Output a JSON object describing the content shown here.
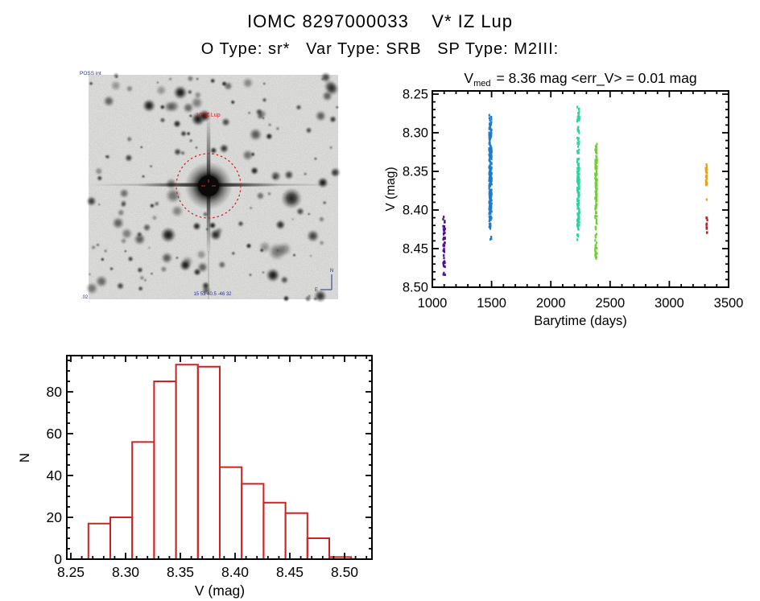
{
  "header": {
    "title": "IOMC 8297000033    V* IZ Lup",
    "subtitle": "O Type: sr*   Var Type: SRB   SP Type: M2III:"
  },
  "finder_chart": {
    "survey_label": "POSS int",
    "target_label": "V* IZ Lup",
    "coords_label": "15 53 40.5  -46 32",
    "scale_label": ".02",
    "compass_north": "N",
    "compass_east": "E"
  },
  "chart_data": [
    {
      "id": "lightcurve",
      "type": "scatter",
      "title_v": "V",
      "title_sub": "med",
      "title_rest": "= 8.36 mag <err_V> = 0.01 mag",
      "v_median_mag": 8.36,
      "err_v_mag": 0.01,
      "xlabel": "Barytime (days)",
      "ylabel": "V (mag)",
      "xlim": [
        1000,
        3500
      ],
      "ylim": [
        8.5,
        8.25
      ],
      "xticks": [
        1000,
        1500,
        2000,
        2500,
        3000,
        3500
      ],
      "xtick_labels": [
        "1000",
        "1500",
        "2000",
        "2500",
        "3000",
        "3500"
      ],
      "yticks": [
        8.25,
        8.3,
        8.35,
        8.4,
        8.45,
        8.5
      ],
      "ytick_labels": [
        "8.25",
        "8.30",
        "8.35",
        "8.40",
        "8.45",
        "8.50"
      ],
      "x_minor_step": 100,
      "y_minor_step": 0.01,
      "clusters": [
        {
          "name": "epoch-1",
          "color": "#4A1090",
          "t": 1100,
          "t_jitter": 9,
          "segments": [
            [
              8.408,
              8.417,
              5
            ],
            [
              8.42,
              8.452,
              24
            ],
            [
              8.452,
              8.476,
              13
            ],
            [
              8.48,
              8.492,
              3
            ]
          ]
        },
        {
          "name": "epoch-2",
          "color": "#1B7CD0",
          "t": 1490,
          "t_jitter": 11,
          "segments": [
            [
              8.276,
              8.292,
              14
            ],
            [
              8.292,
              8.312,
              30
            ],
            [
              8.312,
              8.402,
              170
            ],
            [
              8.402,
              8.418,
              14
            ],
            [
              8.418,
              8.428,
              8
            ],
            [
              8.432,
              8.44,
              3
            ]
          ]
        },
        {
          "name": "epoch-3",
          "color": "#2FD3A0",
          "t": 2232,
          "t_jitter": 9,
          "segments": [
            [
              8.266,
              8.286,
              20
            ],
            [
              8.292,
              8.302,
              6
            ],
            [
              8.306,
              8.318,
              8
            ],
            [
              8.32,
              8.336,
              10
            ],
            [
              8.336,
              8.352,
              16
            ],
            [
              8.352,
              8.42,
              95
            ],
            [
              8.42,
              8.44,
              12
            ]
          ]
        },
        {
          "name": "epoch-4",
          "color": "#70CF35",
          "t": 2382,
          "t_jitter": 8,
          "segments": [
            [
              8.312,
              8.332,
              14
            ],
            [
              8.332,
              8.4,
              80
            ],
            [
              8.4,
              8.414,
              9
            ],
            [
              8.416,
              8.426,
              5
            ],
            [
              8.43,
              8.464,
              20
            ]
          ]
        },
        {
          "name": "epoch-5",
          "color": "#E2A41E",
          "t": 3312,
          "t_jitter": 6,
          "segments": [
            [
              8.338,
              8.348,
              6
            ],
            [
              8.348,
              8.372,
              24
            ],
            [
              8.386,
              8.39,
              1
            ]
          ]
        },
        {
          "name": "epoch-6",
          "color": "#B02126",
          "t": 3318,
          "t_jitter": 5,
          "segments": [
            [
              8.404,
              8.43,
              13
            ]
          ]
        }
      ]
    },
    {
      "id": "histogram",
      "type": "bar",
      "xlabel": "V (mag)",
      "ylabel": "N",
      "color": "#CC2222",
      "bin_start": 8.266,
      "bin_width": 0.02,
      "counts": [
        17,
        20,
        56,
        85,
        93,
        92,
        44,
        36,
        27,
        22,
        10,
        1
      ],
      "xticks": [
        8.25,
        8.3,
        8.35,
        8.4,
        8.45,
        8.5
      ],
      "xtick_labels": [
        "8.25",
        "8.30",
        "8.35",
        "8.40",
        "8.45",
        "8.50"
      ],
      "yticks": [
        0,
        20,
        40,
        60,
        80
      ],
      "ytick_labels": [
        "0",
        "20",
        "40",
        "60",
        "80"
      ],
      "xlim": [
        8.246,
        8.525
      ],
      "ylim": [
        0,
        97
      ]
    }
  ]
}
